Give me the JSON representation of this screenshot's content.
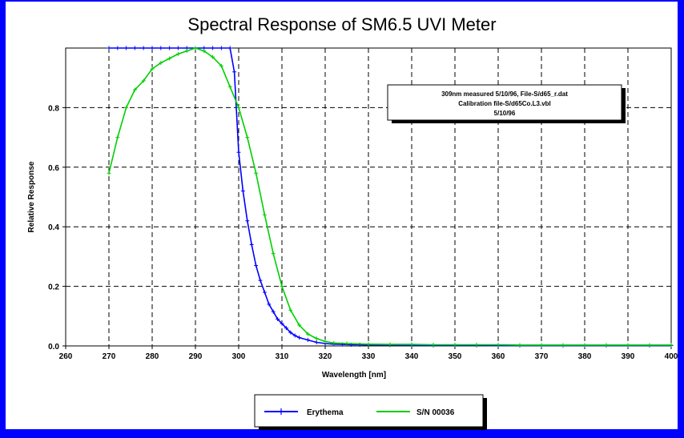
{
  "colors": {
    "erythema": "#0000ff",
    "sn": "#00d000",
    "frame": "#0000ff"
  },
  "chart_data": {
    "type": "line",
    "title": "Spectral Response of SM6.5 UVI Meter",
    "xlabel": "Wavelength [nm]",
    "ylabel": "Relative Response",
    "xlim": [
      260,
      400
    ],
    "ylim": [
      0,
      1.0
    ],
    "xticks": [
      260,
      270,
      280,
      290,
      300,
      310,
      320,
      330,
      340,
      350,
      360,
      370,
      380,
      390,
      400
    ],
    "yticks": [
      0.0,
      0.2,
      0.4,
      0.6,
      0.8
    ],
    "ytick_labels": [
      "0.0",
      "0.2",
      "0.4",
      "0.6",
      "0.8"
    ],
    "grid": true,
    "legend_position": "bottom",
    "annotation": [
      "309nm measured 5/10/96, File-S/d65_r.dat",
      "Calibration file-S/d65Co.L3.vbl",
      "5/10/96"
    ],
    "series": [
      {
        "name": "Erythema",
        "color": "#0000ff",
        "marker": "plus",
        "x": [
          270,
          272,
          274,
          276,
          278,
          280,
          282,
          284,
          286,
          288,
          290,
          292,
          294,
          296,
          298,
          299,
          300,
          301,
          302,
          303,
          304,
          305,
          306,
          307,
          308,
          309,
          310,
          311,
          312,
          313,
          314,
          316,
          318,
          320,
          322,
          324,
          326,
          328,
          330,
          335,
          340,
          345,
          350,
          355,
          360,
          365,
          370,
          375,
          380,
          385,
          390,
          395,
          400
        ],
        "y": [
          1.0,
          1.0,
          1.0,
          1.0,
          1.0,
          1.0,
          1.0,
          1.0,
          1.0,
          1.0,
          1.0,
          1.0,
          1.0,
          1.0,
          1.0,
          0.92,
          0.65,
          0.52,
          0.42,
          0.34,
          0.27,
          0.22,
          0.18,
          0.14,
          0.115,
          0.09,
          0.075,
          0.06,
          0.045,
          0.035,
          0.028,
          0.02,
          0.012,
          0.008,
          0.006,
          0.005,
          0.004,
          0.004,
          0.003,
          0.003,
          0.002,
          0.002,
          0.002,
          0.002,
          0.001,
          0.001,
          0.001,
          0.001,
          0.001,
          0.001,
          0.001,
          0.001,
          0.001
        ]
      },
      {
        "name": "S/N 00036",
        "color": "#00d000",
        "marker": "plus",
        "x": [
          270,
          272,
          274,
          276,
          278,
          280,
          282,
          284,
          286,
          288,
          290,
          292,
          294,
          296,
          298,
          300,
          302,
          304,
          306,
          308,
          310,
          312,
          314,
          316,
          318,
          320,
          322,
          325,
          330,
          335,
          340,
          345,
          350,
          355,
          360,
          365,
          370,
          375,
          380,
          385,
          390,
          395,
          400
        ],
        "y": [
          0.58,
          0.7,
          0.8,
          0.86,
          0.89,
          0.93,
          0.95,
          0.965,
          0.98,
          0.99,
          1.0,
          0.99,
          0.97,
          0.94,
          0.87,
          0.8,
          0.7,
          0.58,
          0.44,
          0.31,
          0.2,
          0.12,
          0.07,
          0.04,
          0.025,
          0.015,
          0.01,
          0.008,
          0.006,
          0.005,
          0.005,
          0.004,
          0.004,
          0.004,
          0.004,
          0.003,
          0.003,
          0.003,
          0.003,
          0.003,
          0.003,
          0.003,
          0.003
        ]
      }
    ]
  }
}
